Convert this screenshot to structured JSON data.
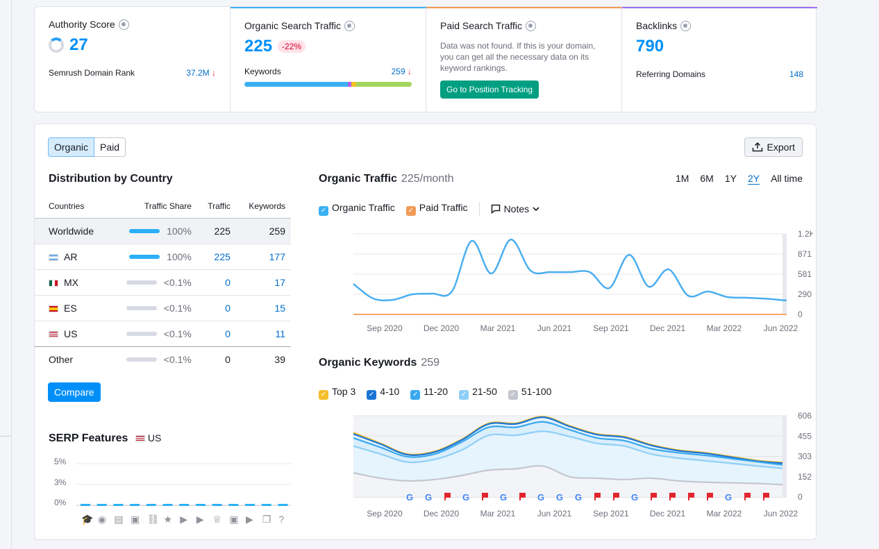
{
  "metrics": [
    {
      "title": "Authority Score",
      "value": "27",
      "row_label": "Semrush Domain Rank",
      "row_value": "37.2M"
    },
    {
      "title": "Organic Search Traffic",
      "value": "225",
      "delta": "-22%",
      "row_label": "Keywords",
      "row_value": "259"
    },
    {
      "title": "Paid Search Traffic",
      "note": "Data was not found. If this is your domain, you can get all the necessary data on its keyword rankings.",
      "button": "Go to Position Tracking"
    },
    {
      "title": "Backlinks",
      "value": "790",
      "row_label": "Referring Domains",
      "row_value": "148"
    }
  ],
  "colors": {
    "accent": "#008ff8",
    "down": "#e2242c",
    "green": "#009f81"
  },
  "toggle": {
    "organic": "Organic",
    "paid": "Paid"
  },
  "export_label": "Export",
  "distribution": {
    "title": "Distribution by Country",
    "columns": [
      "Countries",
      "Traffic Share",
      "Traffic",
      "Keywords"
    ],
    "rows": [
      {
        "country": "Worldwide",
        "share": "100%",
        "traffic": "225",
        "keywords": "259",
        "fill": 1
      },
      {
        "country": "AR",
        "share": "100%",
        "traffic": "225",
        "keywords": "177",
        "fill": 1
      },
      {
        "country": "MX",
        "share": "<0.1%",
        "traffic": "0",
        "keywords": "17",
        "fill": 0
      },
      {
        "country": "ES",
        "share": "<0.1%",
        "traffic": "0",
        "keywords": "15",
        "fill": 0
      },
      {
        "country": "US",
        "share": "<0.1%",
        "traffic": "0",
        "keywords": "11",
        "fill": 0
      },
      {
        "country": "Other",
        "share": "<0.1%",
        "traffic": "0",
        "keywords": "39",
        "fill": 0
      }
    ],
    "compare_label": "Compare"
  },
  "serp": {
    "title": "SERP Features",
    "country": "US",
    "y_ticks": [
      "5%",
      "3%",
      "0%"
    ]
  },
  "organic_traffic": {
    "title": "Organic Traffic",
    "sub": "225/month",
    "periods": [
      "1M",
      "6M",
      "1Y",
      "2Y",
      "All time"
    ],
    "active_period": "2Y",
    "legend": [
      "Organic Traffic",
      "Paid Traffic"
    ],
    "notes_label": "Notes"
  },
  "organic_keywords": {
    "title": "Organic Keywords",
    "sub": "259",
    "legend": [
      "Top 3",
      "4-10",
      "11-20",
      "21-50",
      "51-100"
    ]
  },
  "chart_data": [
    {
      "type": "line",
      "title": "Organic Traffic",
      "x": [
        "Aug 2020",
        "Sep 2020",
        "Oct 2020",
        "Nov 2020",
        "Dec 2020",
        "Jan 2021",
        "Feb 2021",
        "Mar 2021",
        "Apr 2021",
        "May 2021",
        "Jun 2021",
        "Jul 2021",
        "Aug 2021",
        "Sep 2021",
        "Oct 2021",
        "Nov 2021",
        "Dec 2021",
        "Jan 2022",
        "Feb 2022",
        "Mar 2022",
        "Apr 2022",
        "May 2022",
        "Jun 2022"
      ],
      "x_ticks": [
        "Sep 2020",
        "Dec 2020",
        "Mar 2021",
        "Jun 2021",
        "Sep 2021",
        "Dec 2021",
        "Mar 2022",
        "Jun 2022"
      ],
      "y_ticks": [
        "0",
        "290",
        "581",
        "871",
        "1.2K"
      ],
      "ylim": [
        0,
        1161
      ],
      "series": [
        {
          "name": "Organic Traffic",
          "color": "#4aaef0",
          "values": [
            440,
            230,
            210,
            290,
            300,
            330,
            1060,
            590,
            1080,
            630,
            610,
            610,
            610,
            380,
            860,
            400,
            650,
            270,
            330,
            250,
            240,
            225,
            200
          ]
        },
        {
          "name": "Paid Traffic",
          "color": "#f3a86a",
          "values": [
            0,
            0,
            0,
            0,
            0,
            0,
            0,
            0,
            0,
            0,
            0,
            0,
            0,
            0,
            0,
            0,
            0,
            0,
            0,
            0,
            0,
            0,
            0
          ]
        }
      ]
    },
    {
      "type": "area",
      "title": "Organic Keywords",
      "x_ticks": [
        "Sep 2020",
        "Dec 2020",
        "Mar 2021",
        "Jun 2021",
        "Sep 2021",
        "Dec 2021",
        "Mar 2022",
        "Jun 2022"
      ],
      "y_ticks": [
        "0",
        "152",
        "303",
        "455",
        "606"
      ],
      "ylim": [
        0,
        606
      ],
      "series": [
        {
          "name": "Top 3",
          "color": "#f5bf2a",
          "values": [
            480,
            400,
            320,
            340,
            430,
            550,
            550,
            600,
            530,
            470,
            450,
            390,
            350,
            330,
            300,
            270,
            255
          ]
        },
        {
          "name": "4-10",
          "color": "#1a74d4",
          "values": [
            470,
            395,
            315,
            335,
            425,
            545,
            545,
            595,
            525,
            465,
            445,
            385,
            345,
            325,
            295,
            265,
            250
          ]
        },
        {
          "name": "11-20",
          "color": "#39a8ee",
          "values": [
            440,
            370,
            300,
            320,
            410,
            520,
            520,
            560,
            500,
            440,
            420,
            360,
            330,
            310,
            285,
            260,
            235
          ]
        },
        {
          "name": "21-50",
          "color": "#8fcff7",
          "values": [
            380,
            320,
            260,
            280,
            350,
            460,
            460,
            490,
            450,
            400,
            380,
            320,
            290,
            270,
            250,
            230,
            210
          ]
        },
        {
          "name": "51-100",
          "color": "#c4c7cf",
          "values": [
            180,
            140,
            120,
            130,
            160,
            200,
            210,
            230,
            150,
            140,
            130,
            140,
            120,
            110,
            105,
            100,
            90
          ]
        }
      ]
    }
  ]
}
